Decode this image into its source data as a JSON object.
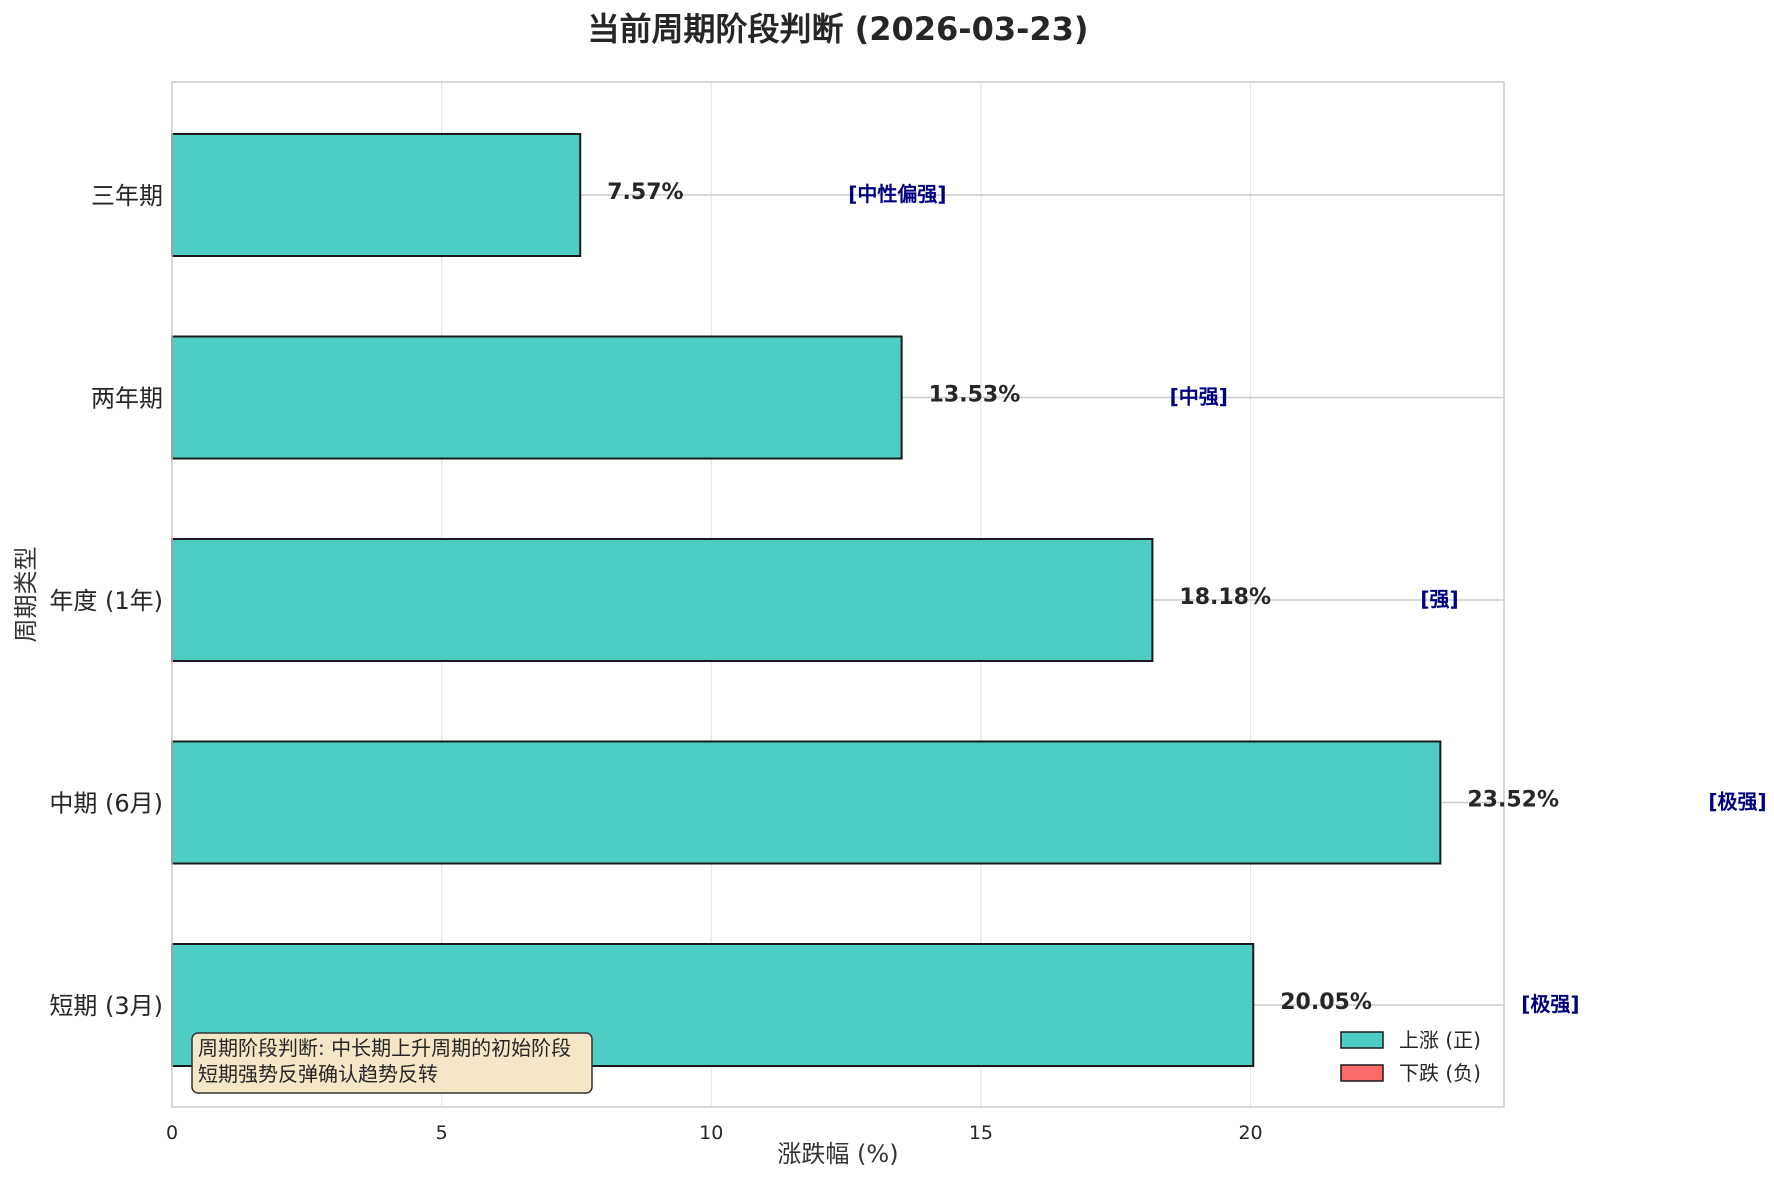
{
  "chart_data": {
    "type": "bar",
    "orientation": "horizontal",
    "title": "当前周期阶段判断 (2026-03-23)",
    "xlabel": "涨跌幅 (%)",
    "ylabel": "周期类型",
    "xlim": [
      0,
      24.7
    ],
    "x_ticks": [
      0,
      5,
      10,
      15,
      20
    ],
    "grid": true,
    "categories": [
      "短期 (3月)",
      "中期 (6月)",
      "年度 (1年)",
      "两年期",
      "三年期"
    ],
    "values": [
      20.05,
      23.52,
      18.18,
      13.53,
      7.57
    ],
    "value_labels": [
      "20.05%",
      "23.52%",
      "18.18%",
      "13.53%",
      "7.57%"
    ],
    "strength_tags": [
      "[极强]",
      "[极强]",
      "[强]",
      "[中强]",
      "[中性偏强]"
    ],
    "legend": {
      "placement": "lower-right",
      "entries": [
        {
          "label": "上涨 (正)",
          "color": "#4ecdc4"
        },
        {
          "label": "下跌 (负)",
          "color": "#ff6b6b"
        }
      ]
    },
    "annotation": {
      "lines": [
        "周期阶段判断: 中长期上升周期的初始阶段",
        "短期强势反弹确认趋势反转"
      ],
      "placement": "lower-left"
    },
    "colors": {
      "positive": "#4ecdc4",
      "negative": "#ff6b6b",
      "tag": "#000080",
      "annotation_bg": "#f5e6c8"
    }
  }
}
